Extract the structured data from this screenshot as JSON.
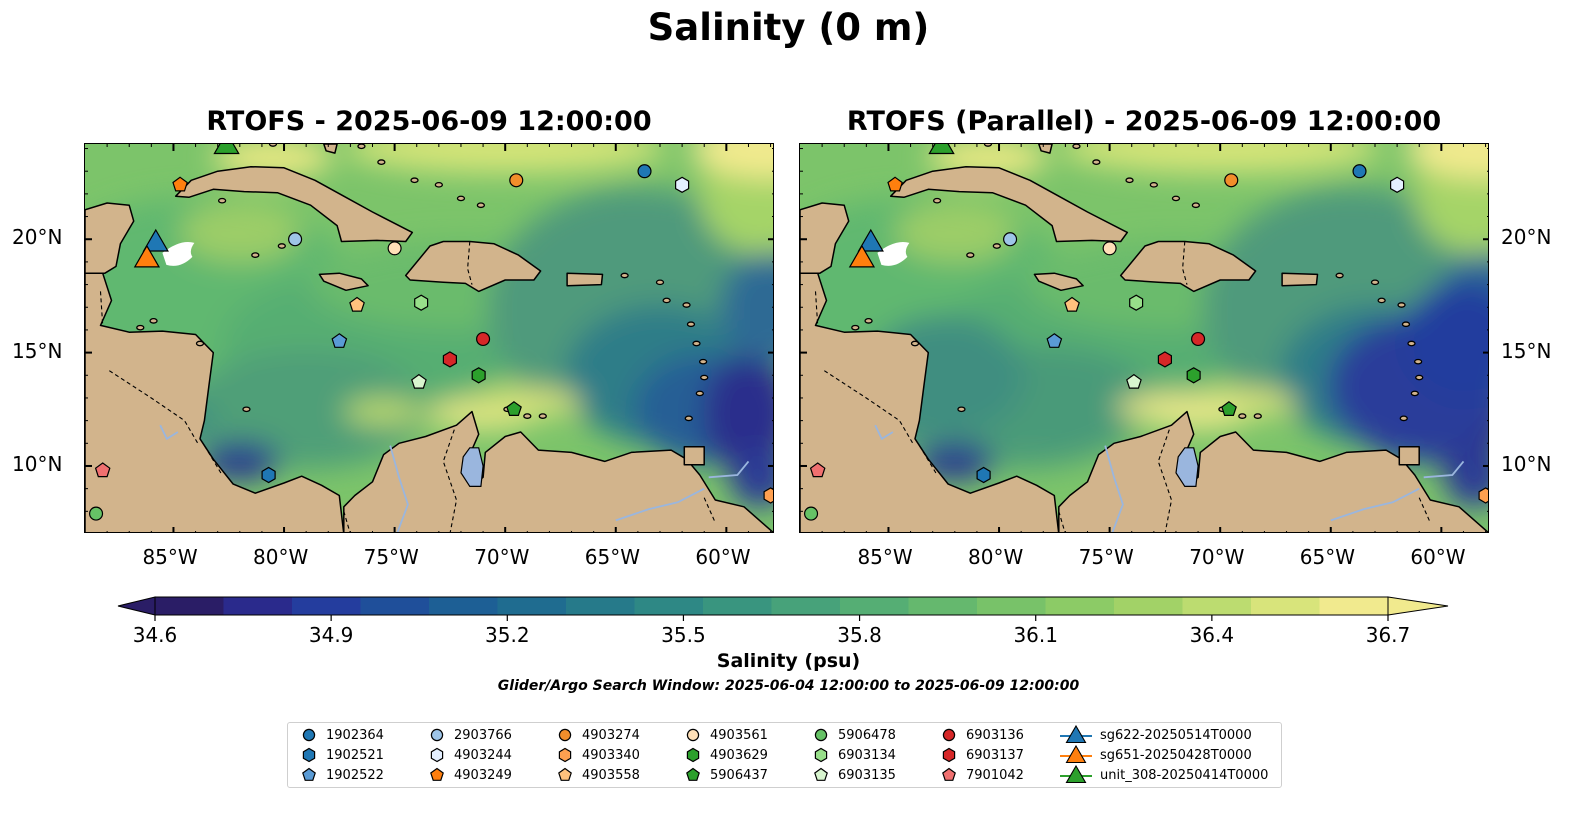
{
  "figure_title": "Salinity (0 m)",
  "panels": [
    {
      "title": "RTOFS - 2025-06-09 12:00:00",
      "lat_labels_side": "left"
    },
    {
      "title": "RTOFS (Parallel) - 2025-06-09 12:00:00",
      "lat_labels_side": "right"
    }
  ],
  "map_extent": {
    "lon": [
      -89,
      -57.8
    ],
    "lat": [
      7,
      24.2
    ]
  },
  "lon_ticks": [
    "85°W",
    "80°W",
    "75°W",
    "70°W",
    "65°W",
    "60°W"
  ],
  "lon_tick_values": [
    -85,
    -80,
    -75,
    -70,
    -65,
    -60
  ],
  "lat_ticks": [
    "20°N",
    "15°N",
    "10°N"
  ],
  "lat_tick_values": [
    20,
    15,
    10
  ],
  "colorbar": {
    "title": "Salinity (psu)",
    "subtitle": "Glider/Argo Search Window: 2025-06-04 12:00:00 to 2025-06-09 12:00:00",
    "labels": [
      "34.6",
      "34.9",
      "35.2",
      "35.5",
      "35.8",
      "36.1",
      "36.4",
      "36.7"
    ],
    "min": 34.6,
    "max": 36.7,
    "extend": "both",
    "colormap": "viridis-like (dark navy to pale yellow)",
    "colors": [
      "#2a1d66",
      "#2a2a8c",
      "#243d9e",
      "#1f4f9a",
      "#1d5f95",
      "#1f6c90",
      "#267a8a",
      "#2e8885",
      "#39957f",
      "#47a27a",
      "#55ae74",
      "#65b86e",
      "#78c269",
      "#8ccb66",
      "#a2d267",
      "#bcdc70",
      "#d8e47b",
      "#f1ea8e"
    ]
  },
  "colors": {
    "land": "#d2b48c",
    "ocean_deep": "#2a1d66",
    "lakes": "#9ab6de"
  },
  "legend": [
    {
      "label": "1902364",
      "marker": "circle",
      "color": "#1f77b4"
    },
    {
      "label": "1902521",
      "marker": "hexagon",
      "color": "#1f77b4"
    },
    {
      "label": "1902522",
      "marker": "pentagon",
      "color": "#5a9bd5"
    },
    {
      "label": "2903766",
      "marker": "circle",
      "color": "#9ec5e8"
    },
    {
      "label": "4903244",
      "marker": "hexagon",
      "color": "#e3efff"
    },
    {
      "label": "4903249",
      "marker": "pentagon",
      "color": "#ff7f0e"
    },
    {
      "label": "4903274",
      "marker": "circle",
      "color": "#f28e2b"
    },
    {
      "label": "4903340",
      "marker": "hexagon",
      "color": "#ffa050"
    },
    {
      "label": "4903558",
      "marker": "pentagon",
      "color": "#ffc27d"
    },
    {
      "label": "4903561",
      "marker": "circle",
      "color": "#ffe0b8"
    },
    {
      "label": "4903629",
      "marker": "hexagon",
      "color": "#2ca02c"
    },
    {
      "label": "5906437",
      "marker": "pentagon",
      "color": "#2ca02c"
    },
    {
      "label": "5906478",
      "marker": "circle",
      "color": "#66c266"
    },
    {
      "label": "6903134",
      "marker": "hexagon",
      "color": "#98df8a"
    },
    {
      "label": "6903135",
      "marker": "pentagon",
      "color": "#d8f5cf"
    },
    {
      "label": "6903136",
      "marker": "circle",
      "color": "#d62728"
    },
    {
      "label": "6903137",
      "marker": "hexagon",
      "color": "#d62728"
    },
    {
      "label": "7901042",
      "marker": "pentagon",
      "color": "#f07070"
    },
    {
      "label": "sg622-20250514T0000",
      "marker": "triangle",
      "color": "#1f77b4"
    },
    {
      "label": "sg651-20250428T0000",
      "marker": "triangle",
      "color": "#ff7f0e"
    },
    {
      "label": "unit_308-20250414T0000",
      "marker": "triangle",
      "color": "#2ca02c"
    }
  ],
  "argo_floats": [
    {
      "id": "1902364",
      "lon": -63.7,
      "lat": 23.0
    },
    {
      "id": "1902521",
      "lon": -80.7,
      "lat": 9.6
    },
    {
      "id": "1902522",
      "lon": -77.5,
      "lat": 15.5
    },
    {
      "id": "2903766",
      "lon": -79.5,
      "lat": 20.0
    },
    {
      "id": "4903244",
      "lon": -62.0,
      "lat": 22.4
    },
    {
      "id": "4903249",
      "lon": -84.7,
      "lat": 22.4
    },
    {
      "id": "4903274",
      "lon": -69.5,
      "lat": 22.6
    },
    {
      "id": "4903340",
      "lon": -58.0,
      "lat": 8.7
    },
    {
      "id": "4903558",
      "lon": -76.7,
      "lat": 17.1
    },
    {
      "id": "4903561",
      "lon": -75.0,
      "lat": 19.6
    },
    {
      "id": "4903629",
      "lon": -71.2,
      "lat": 14.0
    },
    {
      "id": "5906437",
      "lon": -69.6,
      "lat": 12.5
    },
    {
      "id": "5906478",
      "lon": -88.5,
      "lat": 7.9
    },
    {
      "id": "6903134",
      "lon": -73.8,
      "lat": 17.2
    },
    {
      "id": "6903135",
      "lon": -73.9,
      "lat": 13.7
    },
    {
      "id": "6903136",
      "lon": -71.0,
      "lat": 15.6
    },
    {
      "id": "6903137",
      "lon": -72.5,
      "lat": 14.7
    },
    {
      "id": "7901042",
      "lon": -88.2,
      "lat": 9.8
    }
  ],
  "gliders": [
    {
      "id": "sg622-20250514T0000",
      "lon": -85.8,
      "lat": 19.7
    },
    {
      "id": "sg651-20250428T0000",
      "lon": -86.2,
      "lat": 19.0
    },
    {
      "id": "unit_308-20250414T0000",
      "lon": -82.6,
      "lat": 24.0
    }
  ]
}
